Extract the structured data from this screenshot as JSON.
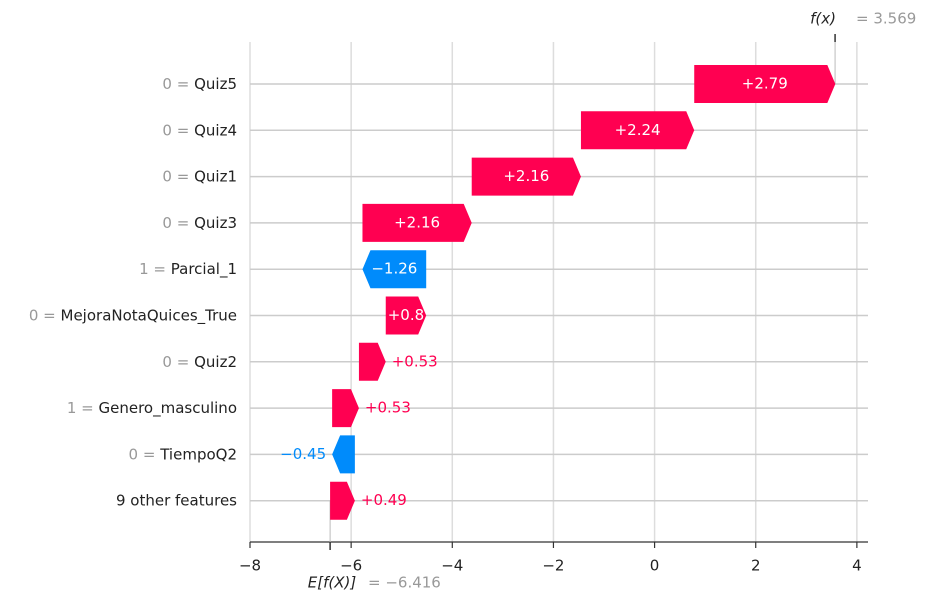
{
  "chart_data": {
    "type": "waterfall",
    "feature_values": [
      "0",
      "0",
      "0",
      "0",
      "1",
      "0",
      "0",
      "1",
      "0",
      null
    ],
    "equals": "=",
    "categories": [
      "Quiz5",
      "Quiz4",
      "Quiz1",
      "Quiz3",
      "Parcial_1",
      "MejoraNotaQuices_True",
      "Quiz2",
      "Genero_masculino",
      "TiempoQ2",
      "9 other features"
    ],
    "values": [
      2.79,
      2.24,
      2.16,
      2.16,
      -1.26,
      0.8,
      0.53,
      0.53,
      -0.45,
      0.49
    ],
    "value_labels": [
      "+2.79",
      "+2.24",
      "+2.16",
      "+2.16",
      "−1.26",
      "+0.8",
      "+0.53",
      "+0.53",
      "−0.45",
      "+0.49"
    ],
    "positive_color": "#ff0051",
    "negative_color": "#008bfb",
    "base": {
      "label": "E[f(X)]",
      "value": -6.416,
      "value_label": "= −6.416"
    },
    "output": {
      "label": "f(x)",
      "value": 3.569,
      "value_label": "= 3.569"
    },
    "xlim": [
      -8,
      4.22
    ],
    "xticks": [
      {
        "value": -8,
        "label": "−8"
      },
      {
        "value": -6,
        "label": "−6"
      },
      {
        "value": -4,
        "label": "−4"
      },
      {
        "value": -2,
        "label": "−2"
      },
      0,
      2,
      4
    ],
    "grid": true
  }
}
